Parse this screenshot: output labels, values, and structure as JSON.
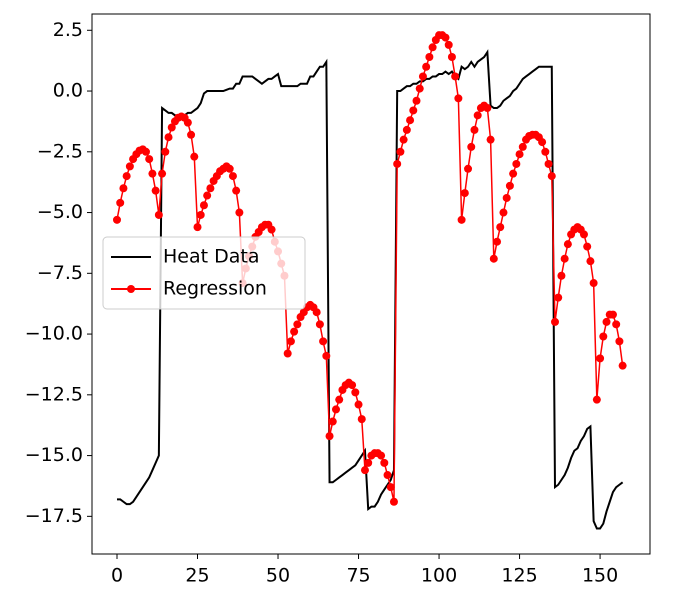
{
  "chart_data": {
    "type": "line",
    "x": [
      0,
      1,
      2,
      3,
      4,
      5,
      6,
      7,
      8,
      9,
      10,
      11,
      12,
      13,
      14,
      15,
      16,
      17,
      18,
      19,
      20,
      21,
      22,
      23,
      24,
      25,
      26,
      27,
      28,
      29,
      30,
      31,
      32,
      33,
      34,
      35,
      36,
      37,
      38,
      39,
      40,
      41,
      42,
      43,
      44,
      45,
      46,
      47,
      48,
      49,
      50,
      51,
      52,
      53,
      54,
      55,
      56,
      57,
      58,
      59,
      60,
      61,
      62,
      63,
      64,
      65,
      66,
      67,
      68,
      69,
      70,
      71,
      72,
      73,
      74,
      75,
      76,
      77,
      78,
      79,
      80,
      81,
      82,
      83,
      84,
      85,
      86,
      87,
      88,
      89,
      90,
      91,
      92,
      93,
      94,
      95,
      96,
      97,
      98,
      99,
      100,
      101,
      102,
      103,
      104,
      105,
      106,
      107,
      108,
      109,
      110,
      111,
      112,
      113,
      114,
      115,
      116,
      117,
      118,
      119,
      120,
      121,
      122,
      123,
      124,
      125,
      126,
      127,
      128,
      129,
      130,
      131,
      132,
      133,
      134,
      135,
      136,
      137,
      138,
      139,
      140,
      141,
      142,
      143,
      144,
      145,
      146,
      147,
      148,
      149,
      150,
      151,
      152,
      153,
      154,
      155,
      156,
      157
    ],
    "series": [
      {
        "name": "Heat Data",
        "color": "#000000",
        "marker": false,
        "values": [
          -16.8,
          -16.8,
          -16.9,
          -17.0,
          -17.0,
          -16.9,
          -16.7,
          -16.5,
          -16.3,
          -16.1,
          -15.9,
          -15.6,
          -15.3,
          -15.0,
          -0.7,
          -0.8,
          -0.9,
          -0.9,
          -1.0,
          -1.0,
          -1.0,
          -1.0,
          -0.9,
          -0.9,
          -0.8,
          -0.7,
          -0.5,
          -0.1,
          0.0,
          0.0,
          0.0,
          0.0,
          0.0,
          0.0,
          0.05,
          0.1,
          0.1,
          0.3,
          0.3,
          0.6,
          0.6,
          0.6,
          0.6,
          0.5,
          0.4,
          0.3,
          0.4,
          0.5,
          0.5,
          0.6,
          0.7,
          0.2,
          0.2,
          0.2,
          0.2,
          0.2,
          0.2,
          0.3,
          0.3,
          0.3,
          0.6,
          0.6,
          0.8,
          1.0,
          1.0,
          1.2,
          -16.1,
          -16.1,
          -16.0,
          -15.9,
          -15.8,
          -15.7,
          -15.6,
          -15.5,
          -15.4,
          -15.2,
          -15.0,
          -14.8,
          -17.2,
          -17.1,
          -17.1,
          -16.9,
          -16.6,
          -16.4,
          -16.2,
          -16.0,
          -15.6,
          0.0,
          0.0,
          0.1,
          0.2,
          0.2,
          0.3,
          0.3,
          0.4,
          0.4,
          0.5,
          0.5,
          0.6,
          0.6,
          0.7,
          0.7,
          0.8,
          0.7,
          0.8,
          0.6,
          0.5,
          1.0,
          0.9,
          1.0,
          1.2,
          1.0,
          1.2,
          1.3,
          1.4,
          1.6,
          -0.6,
          -0.7,
          -0.7,
          -0.6,
          -0.4,
          -0.3,
          -0.2,
          0.0,
          0.1,
          0.3,
          0.5,
          0.6,
          0.7,
          0.8,
          0.9,
          1.0,
          1.0,
          1.0,
          1.0,
          1.0,
          -16.3,
          -16.2,
          -16.0,
          -15.8,
          -15.5,
          -15.1,
          -14.8,
          -14.7,
          -14.4,
          -14.2,
          -13.9,
          -13.8,
          -17.7,
          -18.0,
          -18.0,
          -17.8,
          -17.3,
          -16.9,
          -16.5,
          -16.3,
          -16.2,
          -16.1
        ]
      },
      {
        "name": "Regression",
        "color": "#ff0000",
        "marker": true,
        "values": [
          -5.3,
          -4.6,
          -4.0,
          -3.5,
          -3.1,
          -2.8,
          -2.6,
          -2.45,
          -2.4,
          -2.5,
          -2.8,
          -3.4,
          -4.1,
          -5.1,
          -3.4,
          -2.5,
          -1.9,
          -1.5,
          -1.25,
          -1.1,
          -1.05,
          -1.1,
          -1.3,
          -1.8,
          -2.7,
          -5.6,
          -5.1,
          -4.7,
          -4.3,
          -4.0,
          -3.7,
          -3.5,
          -3.3,
          -3.2,
          -3.1,
          -3.2,
          -3.5,
          -4.1,
          -5.0,
          -7.9,
          -7.3,
          -6.8,
          -6.4,
          -6.0,
          -5.8,
          -5.6,
          -5.5,
          -5.5,
          -5.7,
          -6.2,
          -6.6,
          -7.1,
          -7.6,
          -10.8,
          -10.3,
          -9.9,
          -9.6,
          -9.3,
          -9.1,
          -8.9,
          -8.8,
          -8.9,
          -9.1,
          -9.6,
          -10.3,
          -10.9,
          -14.2,
          -13.6,
          -13.1,
          -12.7,
          -12.3,
          -12.1,
          -12.0,
          -12.1,
          -12.4,
          -12.9,
          -13.5,
          -15.6,
          -15.3,
          -15.0,
          -14.9,
          -14.9,
          -15.0,
          -15.3,
          -15.8,
          -16.3,
          -16.9,
          -3.0,
          -2.5,
          -2.0,
          -1.6,
          -1.2,
          -0.8,
          -0.4,
          0.1,
          0.6,
          1.0,
          1.4,
          1.8,
          2.1,
          2.3,
          2.3,
          2.2,
          1.9,
          1.4,
          0.6,
          -0.3,
          -5.3,
          -4.2,
          -3.2,
          -2.3,
          -1.6,
          -1.0,
          -0.7,
          -0.6,
          -0.7,
          -2.0,
          -6.9,
          -6.2,
          -5.6,
          -5.0,
          -4.4,
          -3.9,
          -3.4,
          -3.0,
          -2.6,
          -2.3,
          -2.0,
          -1.85,
          -1.8,
          -1.8,
          -1.9,
          -2.1,
          -2.5,
          -3.0,
          -3.5,
          -9.5,
          -8.5,
          -7.6,
          -6.9,
          -6.3,
          -5.9,
          -5.7,
          -5.6,
          -5.7,
          -5.9,
          -6.4,
          -7.0,
          -7.9,
          -12.7,
          -11.0,
          -10.1,
          -9.5,
          -9.2,
          -9.2,
          -9.6,
          -10.3,
          -11.3
        ]
      }
    ],
    "xlim": [
      -7.76,
      165.5
    ],
    "ylim": [
      -19.05,
      3.17
    ],
    "xticks": [
      0,
      25,
      50,
      75,
      100,
      125,
      150
    ],
    "yticks": [
      {
        "value": 2.5,
        "label": "2.5"
      },
      {
        "value": 0,
        "label": "0.0"
      },
      {
        "value": -2.5,
        "label": "−2.5"
      },
      {
        "value": -5,
        "label": "−5.0"
      },
      {
        "value": -7.5,
        "label": "−7.5"
      },
      {
        "value": -10,
        "label": "−10.0"
      },
      {
        "value": -12.5,
        "label": "−12.5"
      },
      {
        "value": -15,
        "label": "−15.0"
      },
      {
        "value": -17.5,
        "label": "−17.5"
      }
    ],
    "legend": "center left"
  }
}
